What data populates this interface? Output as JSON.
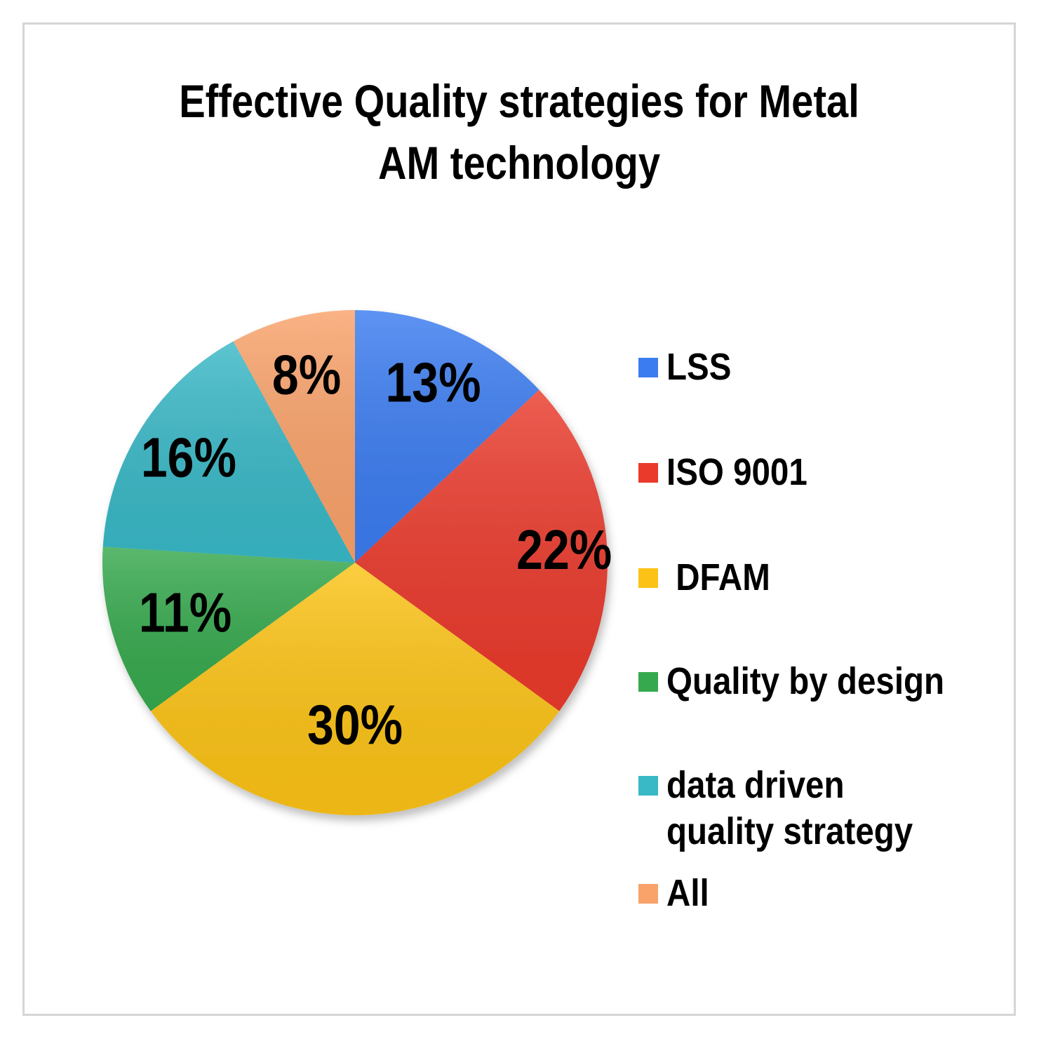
{
  "title_lines": [
    "Effective Quality strategies for Metal",
    "AM technology"
  ],
  "chart_data": {
    "type": "pie",
    "title": "Effective Quality strategies for Metal AM technology",
    "categories": [
      "LSS",
      "ISO 9001",
      " DFAM",
      "Quality by design",
      "data driven quality strategy",
      "All"
    ],
    "values": [
      13,
      22,
      30,
      11,
      16,
      8
    ],
    "data_labels": [
      "13%",
      "22%",
      "30%",
      "11%",
      "16%",
      "8%"
    ],
    "colors": [
      "#3b7cf0",
      "#ea3a2c",
      "#fcc316",
      "#36a94e",
      "#39b8c6",
      "#f9a26a"
    ],
    "legend_position": "right",
    "start_angle": "12 o'clock",
    "direction": "clockwise"
  }
}
